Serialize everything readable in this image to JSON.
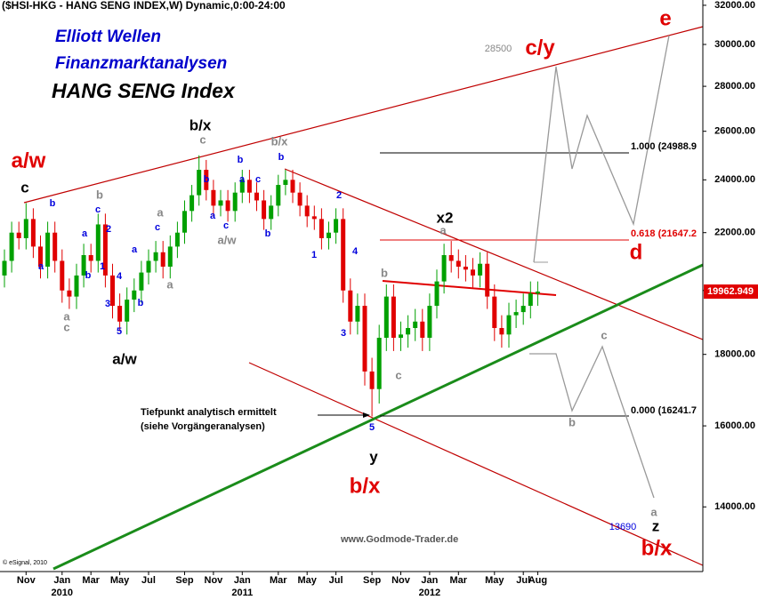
{
  "chart_data": {
    "type": "candlestick",
    "title": "($HSI-HKG - HANG SENG INDEX,W) Dynamic,0:00-24:00",
    "subtitles": [
      "Elliott Wellen",
      "Finanzmarktanalysen",
      "HANG SENG Index"
    ],
    "categories": [
      null,
      null,
      null,
      "Nov",
      null,
      null,
      null,
      null,
      "Jan",
      null,
      null,
      null,
      "Mar",
      null,
      null,
      null,
      "May",
      null,
      null,
      null,
      "Jul",
      null,
      null,
      null,
      null,
      "Sep",
      null,
      null,
      null,
      "Nov",
      null,
      null,
      null,
      "Jan",
      null,
      null,
      null,
      null,
      "Mar",
      null,
      null,
      null,
      "May",
      null,
      null,
      null,
      "Jul",
      null,
      null,
      null,
      null,
      "Sep",
      null,
      null,
      null,
      "Nov",
      null,
      null,
      null,
      "Jan",
      null,
      null,
      null,
      "Mar",
      null,
      null,
      null,
      null,
      "May",
      null,
      null,
      null,
      "Jul",
      null,
      "Aug"
    ],
    "year_labels": [
      "2010",
      "2011",
      "2012"
    ],
    "open": [
      20500,
      21000,
      22000,
      21800,
      22500,
      21500,
      20800,
      22000,
      21000,
      20000,
      19800,
      20500,
      21200,
      21000,
      22300,
      20500,
      19500,
      19000,
      19700,
      20000,
      20600,
      21000,
      21300,
      20800,
      21500,
      22000,
      22800,
      23400,
      24400,
      23600,
      23000,
      23200,
      22800,
      23500,
      24000,
      23500,
      23200,
      22500,
      23000,
      23800,
      24000,
      23500,
      23000,
      22600,
      22500,
      21800,
      22000,
      22500,
      20000,
      19000,
      19500,
      17500,
      17000,
      18500,
      19800,
      18500,
      18600,
      18800,
      19000,
      18500,
      19500,
      20300,
      21200,
      21000,
      20800,
      20700,
      20500,
      20900,
      19800,
      18800,
      18600,
      19200,
      19300,
      19500,
      19900
    ],
    "high": [
      21400,
      22400,
      22400,
      23100,
      22900,
      21900,
      22400,
      22400,
      21400,
      20400,
      20900,
      21600,
      21600,
      22700,
      22700,
      20900,
      19900,
      20100,
      20400,
      21000,
      21400,
      21700,
      21700,
      21900,
      22400,
      23200,
      23800,
      24990,
      24800,
      24000,
      23600,
      23600,
      23900,
      24400,
      24400,
      23900,
      23600,
      23400,
      24200,
      24400,
      24400,
      23900,
      23400,
      23000,
      22900,
      22400,
      22900,
      22900,
      20400,
      19900,
      19900,
      17900,
      18900,
      20200,
      20200,
      19000,
      19200,
      19400,
      19400,
      19900,
      20700,
      21600,
      21700,
      21400,
      21200,
      21100,
      21300,
      21300,
      20200,
      19200,
      19600,
      19700,
      19900,
      20300,
      20300
    ],
    "low": [
      20100,
      20600,
      21400,
      21400,
      21100,
      20400,
      20400,
      20600,
      19600,
      19400,
      19400,
      20100,
      20600,
      20600,
      20100,
      19100,
      18700,
      18600,
      19300,
      19600,
      20200,
      20600,
      20400,
      20400,
      21100,
      21600,
      22400,
      23000,
      23200,
      22600,
      22600,
      22400,
      22400,
      23100,
      23100,
      22800,
      22100,
      22100,
      22600,
      23400,
      23100,
      22600,
      22200,
      22100,
      21400,
      21400,
      21600,
      19600,
      18600,
      18600,
      17100,
      16250,
      16600,
      18100,
      18100,
      18100,
      18200,
      18400,
      18100,
      18100,
      19100,
      19900,
      20600,
      20400,
      20300,
      20100,
      20100,
      19400,
      18400,
      18200,
      18200,
      18800,
      18900,
      19100,
      19500
    ],
    "close": [
      21000,
      22000,
      21800,
      22500,
      21500,
      20800,
      22000,
      21000,
      20000,
      19800,
      20500,
      21200,
      21000,
      22300,
      20500,
      19500,
      19000,
      19700,
      20000,
      20600,
      21000,
      21300,
      20800,
      21500,
      22000,
      22800,
      23400,
      24400,
      23600,
      23000,
      23200,
      22800,
      23500,
      24000,
      23500,
      23200,
      22500,
      23000,
      23800,
      24000,
      23500,
      23000,
      22600,
      22500,
      21800,
      22000,
      22500,
      20000,
      19000,
      19500,
      17500,
      17000,
      18500,
      19800,
      18500,
      18600,
      18800,
      19000,
      18500,
      19500,
      20300,
      21200,
      21000,
      20800,
      20700,
      20500,
      20900,
      19800,
      18800,
      18600,
      19200,
      19300,
      19500,
      19900,
      19963
    ],
    "up_color": "#00a000",
    "down_color": "#e00000",
    "log_scale": true,
    "ylim": [
      12640,
      32280
    ],
    "yticks": [
      {
        "value": 14000,
        "label": "14000.00"
      },
      {
        "value": 16000,
        "label": "16000.00"
      },
      {
        "value": 18000,
        "label": "18000.00"
      },
      {
        "value": 20000,
        "label": "20000.00"
      },
      {
        "value": 22000,
        "label": "22000.00"
      },
      {
        "value": 24000,
        "label": "24000.00"
      },
      {
        "value": 26000,
        "label": "26000.00"
      },
      {
        "value": 28000,
        "label": "28000.00"
      },
      {
        "value": 30000,
        "label": "30000.00"
      },
      {
        "value": 32000,
        "label": "32000.00"
      }
    ],
    "last_price": 19962.949,
    "annotations": [
      "a/w",
      "c/y",
      "e",
      "d",
      "b/x",
      "b/x",
      "c",
      "b/x",
      "a/w",
      "x2",
      "y",
      "z",
      "c",
      "b/x",
      "a/w",
      "a",
      "b",
      "a",
      "c",
      "a",
      "b",
      "c",
      "a",
      "b",
      "c",
      "a",
      "b",
      "a",
      "a",
      "2",
      "c",
      "1",
      "b",
      "4",
      "3",
      "5",
      "a",
      "b",
      "c",
      "a",
      "b",
      "a",
      "c",
      "b",
      "c",
      "b",
      "b",
      "2",
      "1",
      "4",
      "3",
      "5",
      "28500",
      "13690"
    ],
    "levels": [
      "1.000 (24988.9",
      "0.618 (21647.2",
      "0.000 (16241.7"
    ],
    "notes": [
      "Tiefpunkt analytisch ermittelt",
      "(siehe Vorgängeranalysen)",
      "www.Godmode-Trader.de",
      "© eSignal, 2010"
    ]
  }
}
